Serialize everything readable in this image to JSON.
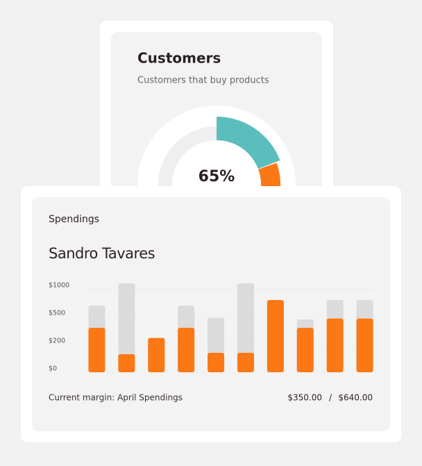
{
  "customers_card": {
    "title": "Customers",
    "subtitle": "Customers that buy products",
    "percent": "65%"
  },
  "spendings_card": {
    "label": "Spendings",
    "name": "Sandro Tavares",
    "footer": {
      "caption": "Current margin: April Spendings",
      "current": "$350.00",
      "separator": "/",
      "total": "$640.00"
    }
  },
  "chart_data": {
    "type": "bar",
    "categories": [
      null,
      null,
      null,
      null,
      null,
      null,
      null,
      null,
      null,
      null
    ],
    "series": [
      {
        "color": "#dcdbdb",
        "values": [
          700,
          1100,
          270,
          700,
          490,
          1100,
          800,
          470,
          800,
          800
        ]
      },
      {
        "color": "#fb7815",
        "values": [
          380,
          130,
          270,
          380,
          140,
          140,
          800,
          380,
          480,
          480
        ]
      }
    ],
    "ylim": [
      0,
      1100
    ],
    "yticks": [
      {
        "value": 0,
        "label": "$0"
      },
      {
        "value": 200,
        "label": "$200"
      },
      {
        "value": 500,
        "label": "$500"
      },
      {
        "value": 1000,
        "label": "$1000"
      }
    ],
    "grid": true
  }
}
